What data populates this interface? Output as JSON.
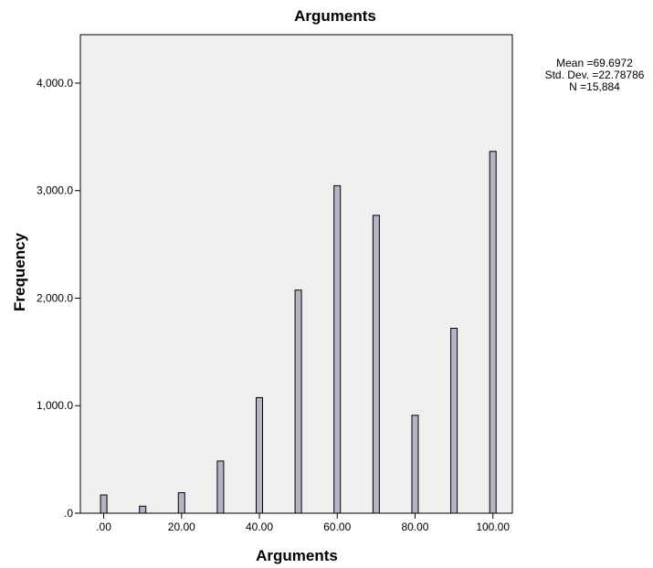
{
  "chart_data": {
    "type": "bar",
    "title": "Arguments",
    "xlabel": "Arguments",
    "ylabel": "Frequency",
    "x_tick_labels": [
      ".00",
      "20.00",
      "40.00",
      "60.00",
      "80.00",
      "100.00"
    ],
    "x_ticks": [
      0,
      20,
      40,
      60,
      80,
      100
    ],
    "xlim": [
      -6,
      105
    ],
    "y_tick_labels": [
      ".0",
      "1,000.0",
      "2,000.0",
      "3,000.0",
      "4,000.0"
    ],
    "y_ticks": [
      0,
      1000,
      2000,
      3000,
      4000
    ],
    "ylim": [
      0,
      4450
    ],
    "x": [
      0,
      10,
      20,
      30,
      40,
      50,
      60,
      70,
      80,
      90,
      100
    ],
    "values": [
      170,
      65,
      190,
      485,
      1075,
      2075,
      3045,
      2770,
      910,
      1720,
      3365
    ],
    "bar_color": "#b3b5c7",
    "plot_background": "#efefef",
    "grid": false,
    "stats": {
      "mean": "Mean =69.6972",
      "std_dev": "Std. Dev. =22.78786",
      "n": "N =15,884"
    },
    "stats_placement": "top-right"
  }
}
